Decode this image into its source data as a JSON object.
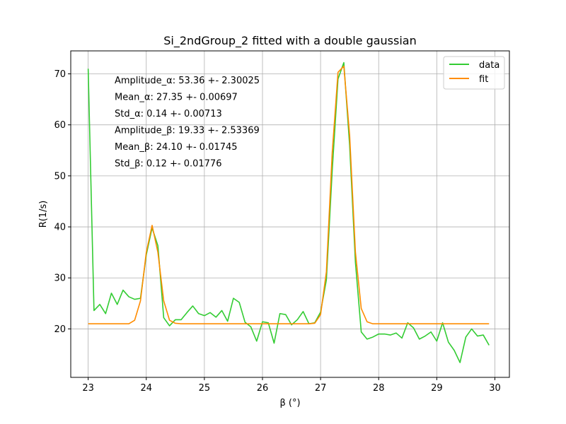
{
  "chart_data": {
    "type": "line",
    "title": "Si_2ndGroup_2 fitted with a double gaussian",
    "xlabel": "β (°)",
    "ylabel": "R(1/s)",
    "xlim": [
      22.7,
      30.25
    ],
    "ylim": [
      10.5,
      74.5
    ],
    "xticks": [
      23,
      24,
      25,
      26,
      27,
      28,
      29,
      30
    ],
    "yticks": [
      20,
      30,
      40,
      50,
      60,
      70
    ],
    "grid": true,
    "legend_position": "top-right",
    "colors": {
      "data": "#33cc33",
      "fit": "#ff8c00"
    },
    "annotations": [
      "Amplitude_α: 53.36 +- 2.30025",
      "Mean_α: 27.35 +- 0.00697",
      "Std_α: 0.14 +- 0.00713",
      "Amplitude_β: 19.33 +- 2.53369",
      "Mean_β: 24.10 +- 0.01745",
      "Std_β: 0.12 +- 0.01776"
    ],
    "series": [
      {
        "name": "data",
        "x": [
          23.0,
          23.1,
          23.2,
          23.3,
          23.4,
          23.5,
          23.6,
          23.7,
          23.8,
          23.9,
          24.0,
          24.1,
          24.2,
          24.3,
          24.4,
          24.5,
          24.6,
          24.7,
          24.8,
          24.9,
          25.0,
          25.1,
          25.2,
          25.3,
          25.4,
          25.5,
          25.6,
          25.7,
          25.8,
          25.9,
          26.0,
          26.1,
          26.2,
          26.3,
          26.4,
          26.5,
          26.6,
          26.7,
          26.8,
          26.9,
          27.0,
          27.1,
          27.2,
          27.3,
          27.4,
          27.5,
          27.6,
          27.7,
          27.8,
          27.9,
          28.0,
          28.1,
          28.2,
          28.3,
          28.4,
          28.5,
          28.6,
          28.7,
          28.8,
          28.9,
          29.0,
          29.1,
          29.2,
          29.3,
          29.4,
          29.5,
          29.6,
          29.7,
          29.8,
          29.9
        ],
        "y": [
          71.0,
          23.6,
          24.8,
          23.0,
          27.0,
          24.8,
          27.6,
          26.3,
          25.8,
          26.0,
          34.5,
          39.8,
          36.3,
          22.2,
          20.6,
          21.8,
          21.8,
          23.2,
          24.5,
          23.0,
          22.6,
          23.2,
          22.3,
          23.6,
          21.5,
          26.0,
          25.2,
          21.3,
          20.4,
          17.6,
          21.4,
          21.2,
          17.2,
          23.0,
          22.8,
          20.8,
          21.8,
          23.4,
          21.0,
          21.2,
          23.3,
          29.6,
          51.0,
          69.0,
          72.2,
          56.0,
          33.0,
          19.4,
          18.0,
          18.4,
          19.0,
          19.0,
          18.8,
          19.2,
          18.2,
          21.2,
          20.2,
          18.0,
          18.6,
          19.4,
          17.6,
          21.2,
          17.4,
          15.8,
          13.4,
          18.4,
          20.0,
          18.6,
          18.8,
          16.8
        ]
      },
      {
        "name": "fit",
        "x": [
          23.0,
          23.1,
          23.2,
          23.3,
          23.4,
          23.5,
          23.6,
          23.7,
          23.8,
          23.9,
          24.0,
          24.1,
          24.2,
          24.3,
          24.4,
          24.5,
          24.6,
          24.7,
          24.8,
          24.9,
          25.0,
          25.1,
          25.2,
          25.3,
          25.4,
          25.5,
          25.6,
          25.7,
          25.8,
          25.9,
          26.0,
          26.1,
          26.2,
          26.3,
          26.4,
          26.5,
          26.6,
          26.7,
          26.8,
          26.9,
          27.0,
          27.1,
          27.2,
          27.3,
          27.4,
          27.5,
          27.6,
          27.7,
          27.8,
          27.9,
          28.0,
          28.1,
          28.2,
          28.3,
          28.4,
          28.5,
          28.6,
          28.7,
          28.8,
          28.9,
          29.0,
          29.1,
          29.2,
          29.3,
          29.4,
          29.5,
          29.6,
          29.7,
          29.8,
          29.9
        ],
        "y": [
          21.0,
          21.0,
          21.0,
          21.0,
          21.0,
          21.0,
          21.0,
          21.0,
          21.7,
          25.5,
          35.0,
          40.3,
          35.0,
          25.5,
          21.7,
          21.1,
          21.0,
          21.0,
          21.0,
          21.0,
          21.0,
          21.0,
          21.0,
          21.0,
          21.0,
          21.0,
          21.0,
          21.0,
          21.0,
          21.0,
          21.0,
          21.0,
          21.0,
          21.0,
          21.0,
          21.0,
          21.0,
          21.0,
          21.0,
          21.1,
          22.8,
          31.2,
          54.5,
          70.3,
          71.5,
          58.0,
          35.0,
          24.0,
          21.4,
          21.0,
          21.0,
          21.0,
          21.0,
          21.0,
          21.0,
          21.0,
          21.0,
          21.0,
          21.0,
          21.0,
          21.0,
          21.0,
          21.0,
          21.0,
          21.0,
          21.0,
          21.0,
          21.0,
          21.0,
          21.0
        ]
      }
    ]
  }
}
